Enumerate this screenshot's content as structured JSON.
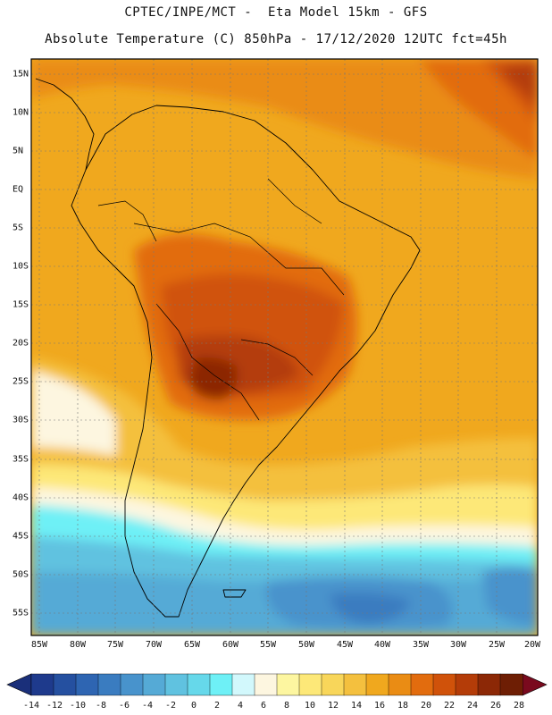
{
  "title": {
    "line1": "CPTEC/INPE/MCT -  Eta Model 15km - GFS",
    "line2": "Absolute Temperature (C) 850hPa - 17/12/2020 12UTC fct=45h"
  },
  "map": {
    "region": "South America",
    "variable": "Absolute Temperature (C) 850hPa",
    "lat_labels": [
      "15N",
      "10N",
      "5N",
      "EQ",
      "5S",
      "10S",
      "15S",
      "20S",
      "25S",
      "30S",
      "35S",
      "40S",
      "45S",
      "50S",
      "55S"
    ],
    "lon_labels": [
      "85W",
      "80W",
      "75W",
      "70W",
      "65W",
      "60W",
      "55W",
      "50W",
      "45W",
      "40W",
      "35W",
      "30W",
      "25W",
      "20W"
    ]
  },
  "colorbar": {
    "labels": [
      "-14",
      "-12",
      "-10",
      "-8",
      "-6",
      "-4",
      "-2",
      "0",
      "2",
      "4",
      "6",
      "8",
      "10",
      "12",
      "14",
      "16",
      "18",
      "20",
      "22",
      "24",
      "26",
      "28"
    ],
    "colors": [
      "#1e3a8c",
      "#2550a0",
      "#2e65b2",
      "#3a7cc0",
      "#4893cc",
      "#55aad6",
      "#60c2e0",
      "#66d8ea",
      "#6ef0f6",
      "#d2f8fc",
      "#fdf6e0",
      "#fdf6a0",
      "#fde878",
      "#f8d65a",
      "#f4c03e",
      "#f0a81e",
      "#ea8c14",
      "#e26c0e",
      "#d0520a",
      "#b43c08",
      "#8c2806",
      "#6e1e04"
    ],
    "under_color": "#1a2f7a",
    "over_color": "#7a0a1e"
  },
  "colors": {
    "warm_orange": "#f0a81e",
    "hot_core": "#8c2806",
    "cold_ocean": "#4893cc"
  }
}
